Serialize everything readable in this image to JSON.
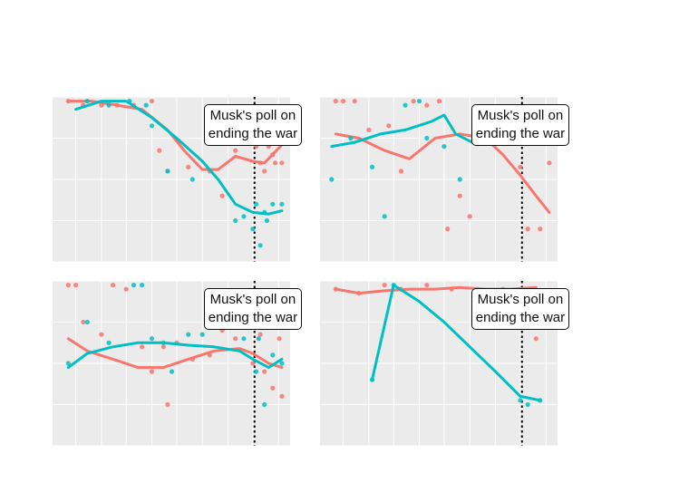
{
  "chart_data": {
    "type": "scatter",
    "annotation": "Musk's poll on ending the war",
    "colors": {
      "series_a": "#f8766d",
      "series_b": "#00bfc4",
      "panel_bg": "#ebebeb",
      "grid": "#ffffff",
      "text": "#000000"
    },
    "event_date": "2022-10-03",
    "xlim": [
      "2022-02-01",
      "2022-11-15"
    ],
    "ylim": [
      -1,
      1
    ],
    "panels": [
      {
        "series": [
          {
            "points": [
              [
                "2022-02-20",
                0.95
              ],
              [
                "2022-03-10",
                0.9
              ],
              [
                "2022-04-01",
                0.9
              ],
              [
                "2022-04-20",
                0.9
              ],
              [
                "2022-05-10",
                0.9
              ],
              [
                "2022-06-01",
                0.95
              ],
              [
                "2022-06-10",
                0.35
              ],
              [
                "2022-06-20",
                0.1
              ],
              [
                "2022-07-15",
                0.15
              ],
              [
                "2022-08-10",
                0.1
              ],
              [
                "2022-08-25",
                -0.2
              ],
              [
                "2022-09-10",
                0.35
              ],
              [
                "2022-10-05",
                0.4
              ],
              [
                "2022-10-10",
                0.2
              ],
              [
                "2022-10-15",
                0.1
              ],
              [
                "2022-10-20",
                0.4
              ],
              [
                "2022-10-25",
                0.3
              ],
              [
                "2022-10-28",
                0.2
              ],
              [
                "2022-11-02",
                0.55
              ],
              [
                "2022-11-05",
                0.2
              ]
            ],
            "trend": [
              [
                "2022-02-20",
                0.95
              ],
              [
                "2022-03-20",
                0.95
              ],
              [
                "2022-04-20",
                0.9
              ],
              [
                "2022-05-20",
                0.85
              ],
              [
                "2022-06-20",
                0.6
              ],
              [
                "2022-07-10",
                0.35
              ],
              [
                "2022-08-01",
                0.12
              ],
              [
                "2022-08-20",
                0.12
              ],
              [
                "2022-09-10",
                0.28
              ],
              [
                "2022-10-01",
                0.22
              ],
              [
                "2022-10-15",
                0.2
              ],
              [
                "2022-11-05",
                0.42
              ]
            ]
          },
          {
            "points": [
              [
                "2022-03-15",
                0.95
              ],
              [
                "2022-04-10",
                0.9
              ],
              [
                "2022-05-05",
                0.95
              ],
              [
                "2022-05-25",
                0.9
              ],
              [
                "2022-06-01",
                0.65
              ],
              [
                "2022-06-20",
                0.1
              ],
              [
                "2022-07-20",
                0.0
              ],
              [
                "2022-09-10",
                -0.5
              ],
              [
                "2022-09-20",
                -0.45
              ],
              [
                "2022-10-01",
                -0.6
              ],
              [
                "2022-10-05",
                -0.3
              ],
              [
                "2022-10-15",
                -0.4
              ],
              [
                "2022-10-18",
                -0.5
              ],
              [
                "2022-10-25",
                -0.3
              ],
              [
                "2022-11-05",
                -0.3
              ],
              [
                "2022-10-10",
                -0.8
              ]
            ],
            "trend": [
              [
                "2022-03-01",
                0.85
              ],
              [
                "2022-04-01",
                0.95
              ],
              [
                "2022-05-01",
                0.95
              ],
              [
                "2022-06-01",
                0.75
              ],
              [
                "2022-07-01",
                0.5
              ],
              [
                "2022-08-01",
                0.22
              ],
              [
                "2022-08-20",
                0.0
              ],
              [
                "2022-09-10",
                -0.3
              ],
              [
                "2022-10-01",
                -0.4
              ],
              [
                "2022-10-20",
                -0.42
              ],
              [
                "2022-11-05",
                -0.38
              ]
            ]
          }
        ]
      },
      {
        "series": [
          {
            "points": [
              [
                "2022-02-20",
                0.95
              ],
              [
                "2022-03-01",
                0.95
              ],
              [
                "2022-03-15",
                0.95
              ],
              [
                "2022-04-01",
                0.6
              ],
              [
                "2022-04-25",
                0.65
              ],
              [
                "2022-05-10",
                0.1
              ],
              [
                "2022-05-25",
                0.95
              ],
              [
                "2022-06-10",
                0.9
              ],
              [
                "2022-06-25",
                0.95
              ],
              [
                "2022-07-05",
                -0.6
              ],
              [
                "2022-07-20",
                -0.2
              ],
              [
                "2022-08-01",
                -0.45
              ],
              [
                "2022-10-01",
                0.15
              ],
              [
                "2022-10-10",
                -0.6
              ],
              [
                "2022-10-25",
                -0.6
              ],
              [
                "2022-11-05",
                0.2
              ]
            ],
            "trend": [
              [
                "2022-02-20",
                0.55
              ],
              [
                "2022-03-20",
                0.5
              ],
              [
                "2022-04-20",
                0.35
              ],
              [
                "2022-05-20",
                0.25
              ],
              [
                "2022-06-20",
                0.5
              ],
              [
                "2022-07-20",
                0.55
              ],
              [
                "2022-08-20",
                0.5
              ],
              [
                "2022-09-10",
                0.3
              ],
              [
                "2022-10-01",
                0.05
              ],
              [
                "2022-10-20",
                -0.2
              ],
              [
                "2022-11-05",
                -0.4
              ]
            ]
          },
          {
            "points": [
              [
                "2022-02-15",
                0.0
              ],
              [
                "2022-03-10",
                0.5
              ],
              [
                "2022-04-05",
                0.15
              ],
              [
                "2022-04-20",
                -0.45
              ],
              [
                "2022-05-15",
                0.9
              ],
              [
                "2022-06-01",
                0.95
              ],
              [
                "2022-06-10",
                0.5
              ],
              [
                "2022-07-01",
                0.4
              ],
              [
                "2022-07-20",
                0.0
              ],
              [
                "2022-08-10",
                0.6
              ],
              [
                "2022-10-05",
                0.5
              ],
              [
                "2022-10-25",
                0.55
              ],
              [
                "2022-11-05",
                0.6
              ]
            ],
            "trend": [
              [
                "2022-02-15",
                0.4
              ],
              [
                "2022-03-15",
                0.45
              ],
              [
                "2022-04-15",
                0.55
              ],
              [
                "2022-05-15",
                0.6
              ],
              [
                "2022-06-15",
                0.7
              ],
              [
                "2022-07-01",
                0.78
              ],
              [
                "2022-07-15",
                0.55
              ],
              [
                "2022-08-10",
                0.42
              ],
              [
                "2022-09-01",
                0.5
              ],
              [
                "2022-10-01",
                0.48
              ],
              [
                "2022-11-05",
                0.55
              ]
            ]
          }
        ]
      },
      {
        "series": [
          {
            "points": [
              [
                "2022-02-20",
                0.95
              ],
              [
                "2022-03-01",
                0.95
              ],
              [
                "2022-03-10",
                0.5
              ],
              [
                "2022-04-01",
                0.35
              ],
              [
                "2022-04-15",
                0.95
              ],
              [
                "2022-05-01",
                0.9
              ],
              [
                "2022-05-20",
                0.2
              ],
              [
                "2022-06-01",
                -0.1
              ],
              [
                "2022-06-15",
                0.2
              ],
              [
                "2022-06-20",
                -0.5
              ],
              [
                "2022-07-01",
                0.25
              ],
              [
                "2022-07-20",
                0.05
              ],
              [
                "2022-08-10",
                0.1
              ],
              [
                "2022-08-25",
                0.4
              ],
              [
                "2022-09-10",
                0.3
              ],
              [
                "2022-10-01",
                0.0
              ],
              [
                "2022-10-10",
                0.35
              ],
              [
                "2022-10-15",
                -0.1
              ],
              [
                "2022-10-25",
                -0.3
              ],
              [
                "2022-11-05",
                -0.4
              ],
              [
                "2022-11-02",
                0.3
              ]
            ],
            "trend": [
              [
                "2022-02-20",
                0.3
              ],
              [
                "2022-03-15",
                0.15
              ],
              [
                "2022-04-15",
                0.05
              ],
              [
                "2022-05-15",
                -0.05
              ],
              [
                "2022-06-15",
                -0.05
              ],
              [
                "2022-07-15",
                0.05
              ],
              [
                "2022-08-15",
                0.15
              ],
              [
                "2022-09-15",
                0.18
              ],
              [
                "2022-10-01",
                0.12
              ],
              [
                "2022-10-20",
                0.0
              ],
              [
                "2022-11-05",
                -0.05
              ]
            ]
          },
          {
            "points": [
              [
                "2022-02-20",
                0.0
              ],
              [
                "2022-03-15",
                0.5
              ],
              [
                "2022-04-10",
                0.25
              ],
              [
                "2022-05-10",
                0.95
              ],
              [
                "2022-05-20",
                0.95
              ],
              [
                "2022-06-01",
                0.3
              ],
              [
                "2022-06-15",
                0.25
              ],
              [
                "2022-06-25",
                -0.1
              ],
              [
                "2022-07-15",
                0.35
              ],
              [
                "2022-08-01",
                0.35
              ],
              [
                "2022-09-20",
                0.3
              ],
              [
                "2022-10-05",
                -0.1
              ],
              [
                "2022-10-08",
                0.3
              ],
              [
                "2022-10-15",
                -0.5
              ],
              [
                "2022-10-25",
                0.1
              ],
              [
                "2022-11-05",
                0.0
              ]
            ],
            "trend": [
              [
                "2022-02-20",
                -0.05
              ],
              [
                "2022-03-15",
                0.12
              ],
              [
                "2022-04-15",
                0.2
              ],
              [
                "2022-05-15",
                0.25
              ],
              [
                "2022-06-15",
                0.25
              ],
              [
                "2022-07-15",
                0.22
              ],
              [
                "2022-08-15",
                0.2
              ],
              [
                "2022-09-15",
                0.15
              ],
              [
                "2022-10-01",
                0.05
              ],
              [
                "2022-10-20",
                -0.05
              ],
              [
                "2022-11-05",
                0.05
              ]
            ]
          }
        ]
      },
      {
        "series": [
          {
            "points": [
              [
                "2022-02-20",
                0.9
              ],
              [
                "2022-03-20",
                0.85
              ],
              [
                "2022-04-20",
                0.95
              ],
              [
                "2022-05-10",
                0.9
              ],
              [
                "2022-06-10",
                0.95
              ],
              [
                "2022-07-10",
                0.9
              ],
              [
                "2022-08-10",
                0.9
              ],
              [
                "2022-09-10",
                0.9
              ],
              [
                "2022-10-01",
                0.9
              ],
              [
                "2022-10-20",
                0.3
              ]
            ],
            "trend": [
              [
                "2022-02-20",
                0.9
              ],
              [
                "2022-03-20",
                0.85
              ],
              [
                "2022-04-20",
                0.88
              ],
              [
                "2022-05-20",
                0.9
              ],
              [
                "2022-06-20",
                0.9
              ],
              [
                "2022-07-20",
                0.92
              ],
              [
                "2022-08-20",
                0.9
              ],
              [
                "2022-09-20",
                0.9
              ],
              [
                "2022-10-20",
                0.92
              ]
            ]
          },
          {
            "points": [
              [
                "2022-04-05",
                -0.2
              ],
              [
                "2022-05-01",
                0.95
              ],
              [
                "2022-10-01",
                -0.45
              ],
              [
                "2022-10-10",
                -0.5
              ],
              [
                "2022-10-25",
                -0.45
              ]
            ],
            "trend": [
              [
                "2022-04-05",
                -0.2
              ],
              [
                "2022-05-01",
                0.95
              ],
              [
                "2022-06-01",
                0.75
              ],
              [
                "2022-07-01",
                0.5
              ],
              [
                "2022-08-01",
                0.2
              ],
              [
                "2022-09-01",
                -0.1
              ],
              [
                "2022-10-01",
                -0.4
              ],
              [
                "2022-10-25",
                -0.45
              ]
            ]
          }
        ]
      }
    ]
  }
}
